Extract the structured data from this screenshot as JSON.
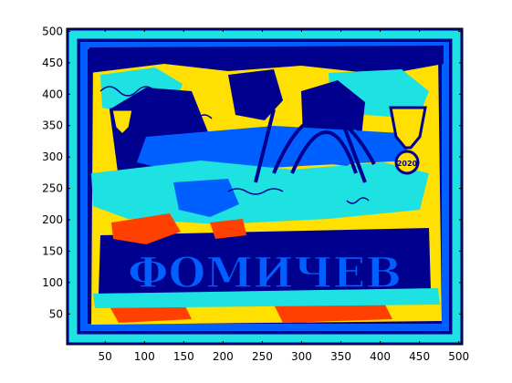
{
  "chart_data": {
    "type": "heatmap",
    "title": "",
    "xlabel": "",
    "ylabel": "",
    "xlim": [
      1,
      505
    ],
    "ylim": [
      1,
      505
    ],
    "x_ticks": [
      50,
      100,
      150,
      200,
      250,
      300,
      350,
      400,
      450,
      500
    ],
    "y_ticks": [
      50,
      100,
      150,
      200,
      250,
      300,
      350,
      400,
      450,
      500
    ],
    "y_axis_direction": "increasing-upward",
    "grid": false,
    "legend": "none",
    "colormap_levels": [
      "#00008f",
      "#0060ff",
      "#1ee1e1",
      "#ffe000",
      "#ff4000"
    ],
    "pictured_lettering": [
      "ФОМИЧЕВ",
      "2020"
    ]
  }
}
